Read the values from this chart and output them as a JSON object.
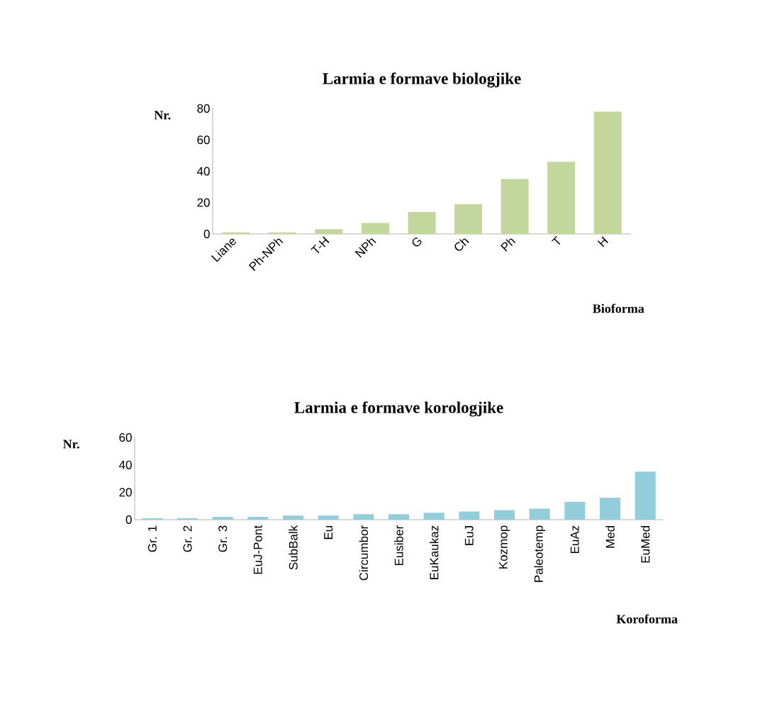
{
  "chart_data": [
    {
      "type": "bar",
      "title": "Larmia e formave biologjike",
      "xlabel": "Bioforma",
      "ylabel": "Nr.",
      "categories": [
        "Liane",
        "Ph-NPh",
        "T-H",
        "NPh",
        "G",
        "Ch",
        "Ph",
        "T",
        "H"
      ],
      "values": [
        1,
        1,
        3,
        7,
        14,
        19,
        35,
        46,
        78
      ],
      "color": "#c3d69b",
      "ylim": [
        0,
        80
      ],
      "yticks": [
        0,
        20,
        40,
        60,
        80
      ],
      "grid": false
    },
    {
      "type": "bar",
      "title": "Larmia e formave korologjike",
      "xlabel": "Koroforma",
      "ylabel": "Nr.",
      "categories": [
        "Gr. 1",
        "Gr. 2",
        "Gr. 3",
        "EuJ-Pont",
        "SubBalk",
        "Eu",
        "Circumbor",
        "Eusiber",
        "EuKaukaz",
        "EuJ",
        "Kozmop",
        "Paleotemp",
        "EuAz",
        "Med",
        "EuMed"
      ],
      "values": [
        1,
        1,
        2,
        2,
        3,
        3,
        4,
        4,
        5,
        6,
        7,
        8,
        13,
        16,
        35
      ],
      "color": "#92cddc",
      "ylim": [
        0,
        60
      ],
      "yticks": [
        0,
        20,
        40,
        60
      ],
      "grid": false
    }
  ]
}
